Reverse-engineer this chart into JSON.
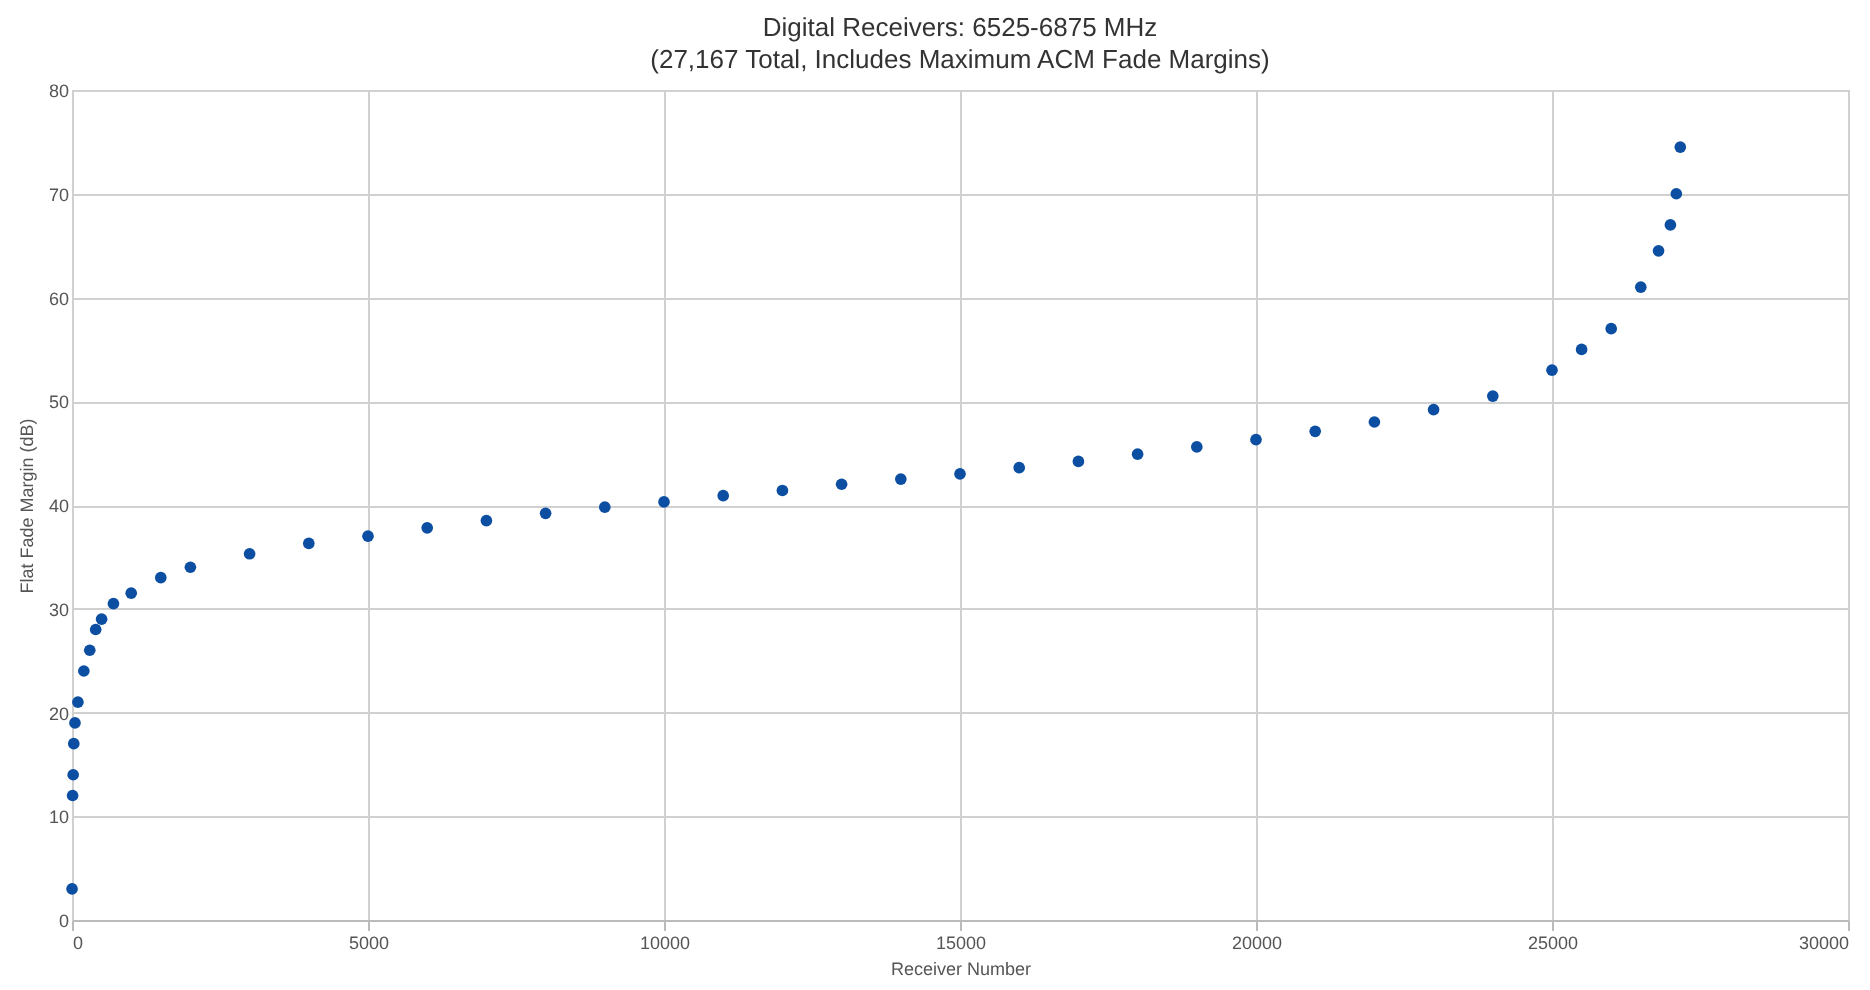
{
  "chart_data": {
    "type": "scatter",
    "title": "Digital Receivers:  6525-6875 MHz",
    "subtitle": "(27,167 Total, Includes Maximum ACM Fade Margins)",
    "xlabel": "Receiver Number",
    "ylabel": "Flat Fade Margin (dB)",
    "x": [
      1,
      10,
      20,
      30,
      50,
      100,
      200,
      300,
      400,
      500,
      700,
      1000,
      1500,
      2000,
      3000,
      4000,
      5000,
      6000,
      7000,
      8000,
      9000,
      10000,
      11000,
      12000,
      13000,
      14000,
      15000,
      16000,
      17000,
      18000,
      19000,
      20000,
      21000,
      22000,
      23000,
      24000,
      25000,
      25500,
      26000,
      26500,
      26800,
      27000,
      27100,
      27167
    ],
    "series": [
      {
        "color": "#0b4ea2",
        "values": [
          3,
          12,
          14,
          17,
          19,
          21,
          24,
          26,
          28,
          29,
          30.5,
          31.5,
          33,
          34,
          35.3,
          36.3,
          37,
          37.8,
          38.5,
          39.2,
          39.8,
          40.3,
          40.9,
          41.4,
          42,
          42.5,
          43,
          43.6,
          44.2,
          44.9,
          45.6,
          46.3,
          47.1,
          48,
          49.2,
          50.5,
          53,
          55,
          57,
          61,
          64.5,
          67,
          70,
          74.5
        ]
      }
    ],
    "xlim": [
      0,
      30000
    ],
    "xticks": [
      0,
      5000,
      10000,
      15000,
      20000,
      25000,
      30000
    ],
    "ylim": [
      0,
      80
    ],
    "yticks": [
      0,
      10,
      20,
      30,
      40,
      50,
      60,
      70,
      80
    ],
    "grid": true,
    "marker": "circle"
  }
}
